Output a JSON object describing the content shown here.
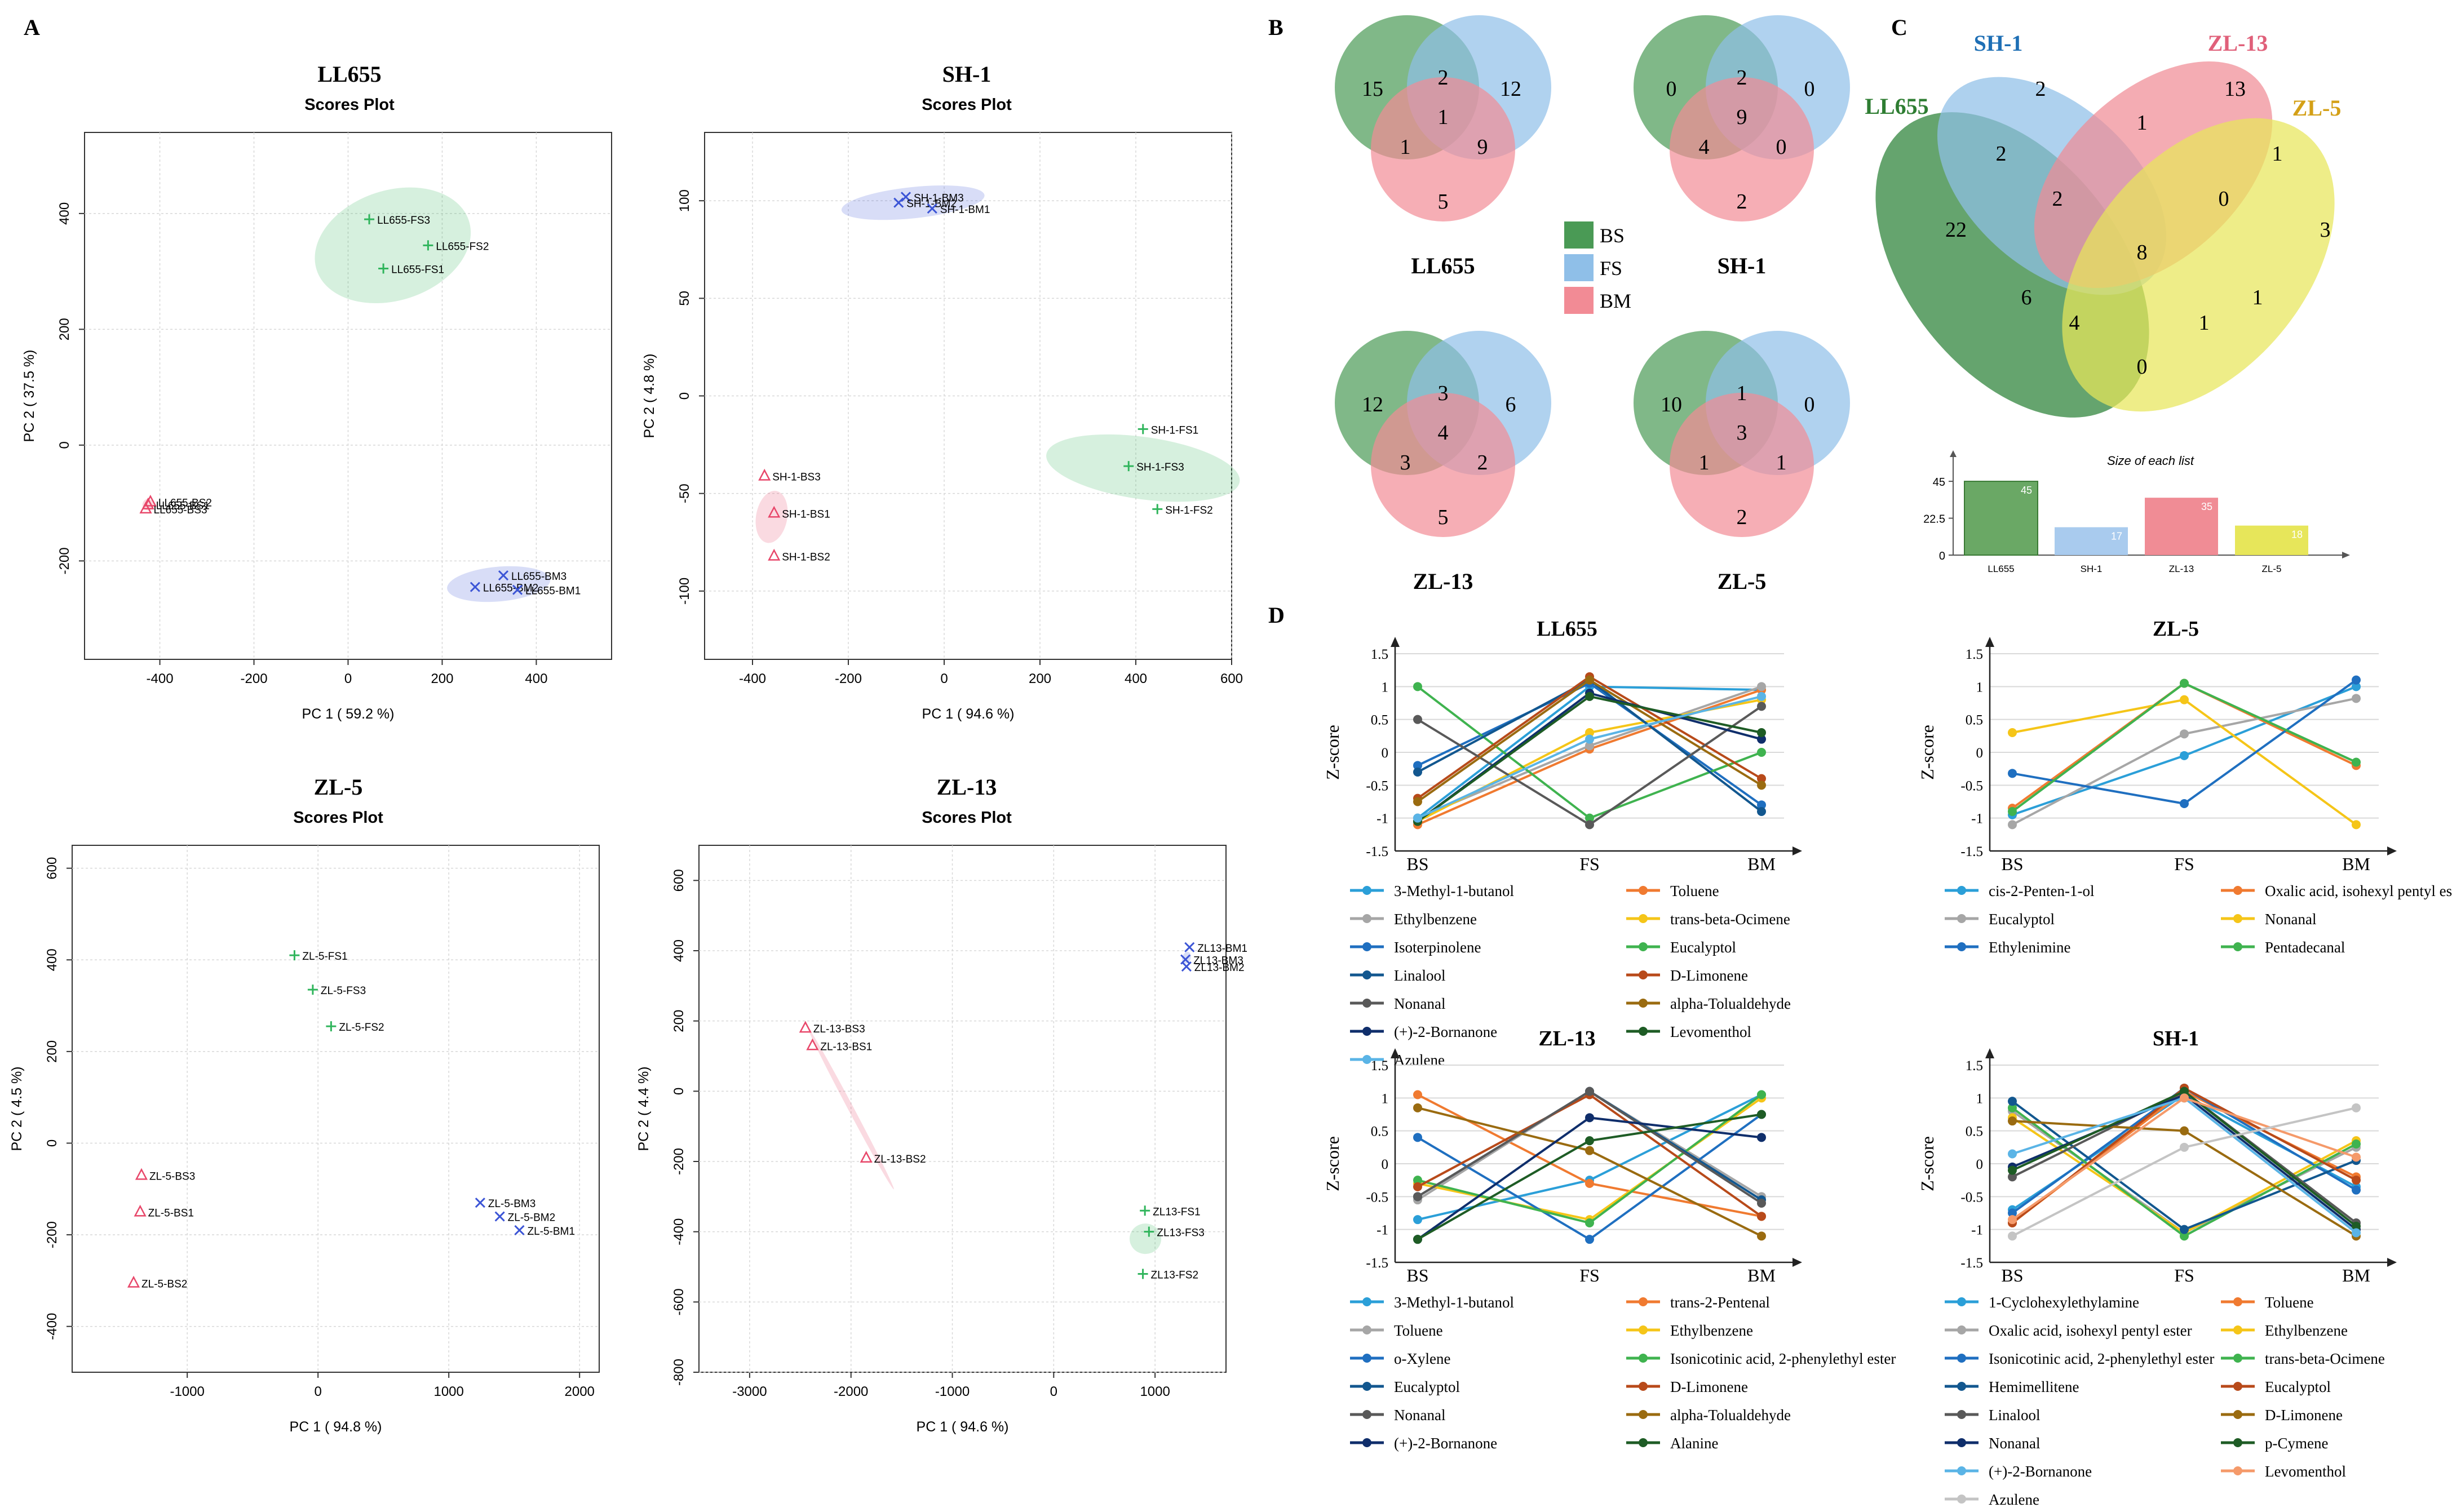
{
  "panels": {
    "A": "A",
    "B": "B",
    "C": "C",
    "D": "D"
  },
  "colors": {
    "bs": "#e8476a",
    "fs": "#30b55c",
    "bm": "#3c55d6",
    "venn_bs": "#4a9a55",
    "venn_fs": "#8fbfe8",
    "venn_bm": "#f28b95"
  },
  "chart_data": [
    {
      "type": "scatter",
      "panel": "A",
      "id": "LL655",
      "title": "LL655",
      "subtitle": "Scores Plot",
      "xlabel": "PC 1 ( 59.2 %)",
      "ylabel": "PC 2 ( 37.5 %)",
      "xlim": [
        -560,
        560
      ],
      "ylim": [
        -370,
        540
      ],
      "xticks": [
        -400,
        -200,
        0,
        200,
        400
      ],
      "yticks": [
        -200,
        0,
        200,
        400
      ],
      "points": [
        {
          "label": "LL655-FS3",
          "g": "FS",
          "x": 45,
          "y": 390
        },
        {
          "label": "LL655-FS2",
          "g": "FS",
          "x": 170,
          "y": 345
        },
        {
          "label": "LL655-FS1",
          "g": "FS",
          "x": 75,
          "y": 305
        },
        {
          "label": "LL655-BS2",
          "g": "BS",
          "x": -420,
          "y": -98
        },
        {
          "label": "LL655-BS1",
          "g": "BS",
          "x": -425,
          "y": -103
        },
        {
          "label": "LL655-BS3",
          "g": "BS",
          "x": -430,
          "y": -110
        },
        {
          "label": "LL655-BM3",
          "g": "BM",
          "x": 330,
          "y": -225
        },
        {
          "label": "LL655-BM2",
          "g": "BM",
          "x": 270,
          "y": -245
        },
        {
          "label": "LL655-BM1",
          "g": "BM",
          "x": 360,
          "y": -250
        }
      ],
      "ellipses": [
        {
          "g": "FS",
          "cx": 95,
          "cy": 345,
          "rx": 170,
          "ry": 95,
          "rot": -18
        },
        {
          "g": "BS",
          "cx": -425,
          "cy": -103,
          "rx": 12,
          "ry": 10,
          "rot": 0
        },
        {
          "g": "BM",
          "cx": 320,
          "cy": -240,
          "rx": 110,
          "ry": 30,
          "rot": -5
        }
      ]
    },
    {
      "type": "scatter",
      "panel": "A",
      "id": "SH-1",
      "title": "SH-1",
      "subtitle": "Scores Plot",
      "xlabel": "PC 1 ( 94.6 %)",
      "ylabel": "PC 2 ( 4.8 %)",
      "xlim": [
        -500,
        600
      ],
      "ylim": [
        -135,
        135
      ],
      "xticks": [
        -400,
        -200,
        0,
        200,
        400,
        600
      ],
      "yticks": [
        -100,
        -50,
        0,
        50,
        100
      ],
      "points": [
        {
          "label": "SH-1-BM3",
          "g": "BM",
          "x": -80,
          "y": 102
        },
        {
          "label": "SH-1-BM2",
          "g": "BM",
          "x": -95,
          "y": 99
        },
        {
          "label": "SH-1-BM1",
          "g": "BM",
          "x": -25,
          "y": 96
        },
        {
          "label": "SH-1-FS1",
          "g": "FS",
          "x": 415,
          "y": -17
        },
        {
          "label": "SH-1-FS3",
          "g": "FS",
          "x": 385,
          "y": -36
        },
        {
          "label": "SH-1-FS2",
          "g": "FS",
          "x": 445,
          "y": -58
        },
        {
          "label": "SH-1-BS3",
          "g": "BS",
          "x": -375,
          "y": -41
        },
        {
          "label": "SH-1-BS1",
          "g": "BS",
          "x": -355,
          "y": -60
        },
        {
          "label": "SH-1-BS2",
          "g": "BS",
          "x": -355,
          "y": -82
        }
      ],
      "ellipses": [
        {
          "g": "BM",
          "cx": -65,
          "cy": 99,
          "rx": 150,
          "ry": 8,
          "rot": -6
        },
        {
          "g": "FS",
          "cx": 415,
          "cy": -37,
          "rx": 65,
          "ry": 50,
          "rot": -82
        },
        {
          "g": "BS",
          "cx": -360,
          "cy": -62,
          "rx": 55,
          "ry": 8,
          "rot": -80
        }
      ]
    },
    {
      "type": "scatter",
      "panel": "A",
      "id": "ZL-5",
      "title": "ZL-5",
      "subtitle": "Scores Plot",
      "xlabel": "PC 1 ( 94.8 %)",
      "ylabel": "PC 2 ( 4.5 %)",
      "xlim": [
        -1880,
        2150
      ],
      "ylim": [
        -500,
        650
      ],
      "xticks": [
        -1000,
        0,
        1000,
        2000
      ],
      "yticks": [
        -400,
        -200,
        0,
        200,
        400,
        600
      ],
      "points": [
        {
          "label": "ZL-5-FS1",
          "g": "FS",
          "x": -180,
          "y": 410
        },
        {
          "label": "ZL-5-FS3",
          "g": "FS",
          "x": -40,
          "y": 335
        },
        {
          "label": "ZL-5-FS2",
          "g": "FS",
          "x": 100,
          "y": 255
        },
        {
          "label": "ZL-5-BS3",
          "g": "BS",
          "x": -1350,
          "y": -70
        },
        {
          "label": "ZL-5-BS1",
          "g": "BS",
          "x": -1360,
          "y": -150
        },
        {
          "label": "ZL-5-BS2",
          "g": "BS",
          "x": -1410,
          "y": -305
        },
        {
          "label": "ZL-5-BM3",
          "g": "BM",
          "x": 1240,
          "y": -130
        },
        {
          "label": "ZL-5-BM2",
          "g": "BM",
          "x": 1390,
          "y": -160
        },
        {
          "label": "ZL-5-BM1",
          "g": "BM",
          "x": 1540,
          "y": -190
        }
      ],
      "ellipses": []
    },
    {
      "type": "scatter",
      "panel": "A",
      "id": "ZL-13",
      "title": "ZL-13",
      "subtitle": "Scores Plot",
      "xlabel": "PC 1 ( 94.6 %)",
      "ylabel": "PC 2 ( 4.4 %)",
      "xlim": [
        -3500,
        1700
      ],
      "ylim": [
        -800,
        700
      ],
      "xticks": [
        -3000,
        -2000,
        -1000,
        0,
        1000
      ],
      "yticks": [
        -800,
        -600,
        -400,
        -200,
        0,
        200,
        400,
        600
      ],
      "points": [
        {
          "label": "ZL13-BM1",
          "g": "BM",
          "x": 1340,
          "y": 410
        },
        {
          "label": "ZL13-BM3",
          "g": "BM",
          "x": 1300,
          "y": 375
        },
        {
          "label": "ZL13-BM2",
          "g": "BM",
          "x": 1310,
          "y": 355
        },
        {
          "label": "ZL-13-BS3",
          "g": "BS",
          "x": -2450,
          "y": 180
        },
        {
          "label": "ZL-13-BS1",
          "g": "BS",
          "x": -2380,
          "y": 130
        },
        {
          "label": "ZL-13-BS2",
          "g": "BS",
          "x": -1850,
          "y": -190
        },
        {
          "label": "ZL13-FS1",
          "g": "FS",
          "x": 900,
          "y": -340
        },
        {
          "label": "ZL13-FS3",
          "g": "FS",
          "x": 940,
          "y": -400
        },
        {
          "label": "ZL13-FS2",
          "g": "FS",
          "x": 880,
          "y": -520
        }
      ],
      "ellipses": [
        {
          "g": "BS",
          "cx": -2000,
          "cy": -50,
          "rx": 900,
          "ry": 8,
          "rot": 62
        },
        {
          "g": "FS",
          "cx": 905,
          "cy": -420,
          "rx": 150,
          "ry": 45,
          "rot": -88
        },
        {
          "g": "BM",
          "cx": 1310,
          "cy": 380,
          "rx": 60,
          "ry": 12,
          "rot": -70
        }
      ]
    },
    {
      "type": "venn",
      "panel": "B",
      "id": "venn-LL655",
      "label": "LL655",
      "regions": {
        "bs": 15,
        "fs": 12,
        "bm": 5,
        "bs_fs": 2,
        "bs_bm": 1,
        "fs_bm": 9,
        "all": 1
      }
    },
    {
      "type": "venn",
      "panel": "B",
      "id": "venn-SH-1",
      "label": "SH-1",
      "regions": {
        "bs": 0,
        "fs": 0,
        "bm": 2,
        "bs_fs": 2,
        "bs_bm": 4,
        "fs_bm": 0,
        "all": 9
      }
    },
    {
      "type": "venn",
      "panel": "B",
      "id": "venn-ZL-13",
      "label": "ZL-13",
      "regions": {
        "bs": 12,
        "fs": 6,
        "bm": 5,
        "bs_fs": 3,
        "bs_bm": 3,
        "fs_bm": 2,
        "all": 4
      }
    },
    {
      "type": "venn",
      "panel": "B",
      "id": "venn-ZL-5",
      "label": "ZL-5",
      "regions": {
        "bs": 10,
        "fs": 0,
        "bm": 2,
        "bs_fs": 1,
        "bs_bm": 1,
        "fs_bm": 1,
        "all": 3
      }
    },
    {
      "type": "venn4",
      "panel": "C",
      "sets": [
        "LL655",
        "SH-1",
        "ZL-13",
        "ZL-5"
      ],
      "counts": [
        2,
        13,
        1,
        2,
        22,
        3,
        1,
        2,
        0,
        8,
        6,
        1,
        4,
        1,
        0
      ]
    },
    {
      "type": "bar",
      "panel": "C",
      "id": "size-bars",
      "title": "Size of each list",
      "categories": [
        "LL655",
        "SH-1",
        "ZL-13",
        "ZL-5"
      ],
      "values": [
        45,
        17,
        35,
        18
      ],
      "yticks": [
        "0",
        "22.5",
        "45"
      ],
      "ylim": [
        0,
        55
      ],
      "colors": [
        "#6aa865",
        "#a9cbee",
        "#f08c95",
        "#e7e65a"
      ]
    },
    {
      "type": "line",
      "panel": "D",
      "id": "D-LL655",
      "title": "LL655",
      "ylabel": "Z-score",
      "categories": [
        "BS",
        "FS",
        "BM"
      ],
      "yticks": [
        -1.5,
        -1,
        -0.5,
        0,
        0.5,
        1,
        1.5
      ],
      "ylim": [
        -1.5,
        1.5
      ],
      "series": [
        {
          "name": "3-Methyl-1-butanol",
          "color": "#2b9fd8",
          "values": [
            -1.0,
            1.0,
            0.95
          ]
        },
        {
          "name": "Toluene",
          "color": "#f07a30",
          "values": [
            -1.1,
            0.05,
            0.95
          ]
        },
        {
          "name": "Ethylbenzene",
          "color": "#a6a6a6",
          "values": [
            -1.0,
            0.1,
            1.0
          ]
        },
        {
          "name": "trans-beta-Ocimene",
          "color": "#f5c518",
          "values": [
            -1.05,
            0.3,
            0.8
          ]
        },
        {
          "name": "Isoterpinolene",
          "color": "#1f6fc0",
          "values": [
            -0.2,
            1.05,
            -0.8
          ]
        },
        {
          "name": "Eucalyptol",
          "color": "#3fb34f",
          "values": [
            1.0,
            -1.0,
            0.0
          ]
        },
        {
          "name": "Linalool",
          "color": "#12578f",
          "values": [
            -0.3,
            1.1,
            -0.9
          ]
        },
        {
          "name": "D-Limonene",
          "color": "#b84a1a",
          "values": [
            -0.7,
            1.15,
            -0.4
          ]
        },
        {
          "name": "Nonanal",
          "color": "#595959",
          "values": [
            0.5,
            -1.1,
            0.7
          ]
        },
        {
          "name": "alpha-Tolualdehyde",
          "color": "#9a6b10",
          "values": [
            -0.75,
            1.1,
            -0.5
          ]
        },
        {
          "name": "(+)-2-Bornanone",
          "color": "#0f2e6b",
          "values": [
            -1.05,
            0.9,
            0.2
          ]
        },
        {
          "name": "Levomenthol",
          "color": "#1e5c25",
          "values": [
            -1.05,
            0.85,
            0.3
          ]
        },
        {
          "name": "Azulene",
          "color": "#5ab4e6",
          "values": [
            -1.0,
            0.2,
            0.85
          ]
        }
      ]
    },
    {
      "type": "line",
      "panel": "D",
      "id": "D-ZL-5",
      "title": "ZL-5",
      "ylabel": "Z-score",
      "categories": [
        "BS",
        "FS",
        "BM"
      ],
      "yticks": [
        -1.5,
        -1,
        -0.5,
        0,
        0.5,
        1,
        1.5
      ],
      "ylim": [
        -1.5,
        1.5
      ],
      "series": [
        {
          "name": "cis-2-Penten-1-ol",
          "color": "#2b9fd8",
          "values": [
            -0.95,
            -0.05,
            1.0
          ]
        },
        {
          "name": "Oxalic acid, isohexyl pentyl ester",
          "color": "#f07a30",
          "values": [
            -0.85,
            1.05,
            -0.2
          ]
        },
        {
          "name": "Eucalyptol",
          "color": "#a6a6a6",
          "values": [
            -1.1,
            0.28,
            0.82
          ]
        },
        {
          "name": "Nonanal",
          "color": "#f5c518",
          "values": [
            0.3,
            0.8,
            -1.1
          ]
        },
        {
          "name": "Ethylenimine",
          "color": "#1f6fc0",
          "values": [
            -0.32,
            -0.78,
            1.1
          ]
        },
        {
          "name": "Pentadecanal",
          "color": "#3fb34f",
          "values": [
            -0.9,
            1.05,
            -0.15
          ]
        }
      ]
    },
    {
      "type": "line",
      "panel": "D",
      "id": "D-ZL-13",
      "title": "ZL-13",
      "ylabel": "Z-score",
      "categories": [
        "BS",
        "FS",
        "BM"
      ],
      "yticks": [
        -1.5,
        -1,
        -0.5,
        0,
        0.5,
        1,
        1.5
      ],
      "ylim": [
        -1.5,
        1.5
      ],
      "series": [
        {
          "name": "3-Methyl-1-butanol",
          "color": "#2b9fd8",
          "values": [
            -0.85,
            -0.25,
            1.05
          ]
        },
        {
          "name": "trans-2-Pentenal",
          "color": "#f07a30",
          "values": [
            1.05,
            -0.3,
            -0.8
          ]
        },
        {
          "name": "Toluene",
          "color": "#a6a6a6",
          "values": [
            -0.55,
            1.1,
            -0.5
          ]
        },
        {
          "name": "Ethylbenzene",
          "color": "#f5c518",
          "values": [
            -0.3,
            -0.85,
            1.0
          ]
        },
        {
          "name": "o-Xylene",
          "color": "#1f6fc0",
          "values": [
            0.4,
            -1.15,
            0.75
          ]
        },
        {
          "name": "Isonicotinic acid, 2-phenylethyl ester",
          "color": "#3fb34f",
          "values": [
            -0.25,
            -0.9,
            1.05
          ]
        },
        {
          "name": "Eucalyptol",
          "color": "#12578f",
          "values": [
            -0.5,
            1.1,
            -0.55
          ]
        },
        {
          "name": "D-Limonene",
          "color": "#b84a1a",
          "values": [
            -0.35,
            1.05,
            -0.8
          ]
        },
        {
          "name": "Nonanal",
          "color": "#595959",
          "values": [
            -0.5,
            1.1,
            -0.6
          ]
        },
        {
          "name": "alpha-Tolualdehyde",
          "color": "#9a6b10",
          "values": [
            0.85,
            0.2,
            -1.1
          ]
        },
        {
          "name": "(+)-2-Bornanone",
          "color": "#0f2e6b",
          "values": [
            -1.15,
            0.7,
            0.4
          ]
        },
        {
          "name": "Alanine",
          "color": "#1e5c25",
          "values": [
            -1.15,
            0.35,
            0.75
          ]
        }
      ]
    },
    {
      "type": "line",
      "panel": "D",
      "id": "D-SH-1",
      "title": "SH-1",
      "ylabel": "Z-score",
      "categories": [
        "BS",
        "FS",
        "BM"
      ],
      "yticks": [
        -1.5,
        -1,
        -0.5,
        0,
        0.5,
        1,
        1.5
      ],
      "ylim": [
        -1.5,
        1.5
      ],
      "series": [
        {
          "name": "1-Cyclohexylethylamine",
          "color": "#2b9fd8",
          "values": [
            -0.7,
            1.05,
            -0.35
          ]
        },
        {
          "name": "Toluene",
          "color": "#f07a30",
          "values": [
            -0.9,
            1.1,
            -0.2
          ]
        },
        {
          "name": "Oxalic acid, isohexyl pentyl ester",
          "color": "#a6a6a6",
          "values": [
            0.8,
            -1.05,
            0.25
          ]
        },
        {
          "name": "Ethylbenzene",
          "color": "#f5c518",
          "values": [
            0.7,
            -1.05,
            0.35
          ]
        },
        {
          "name": "Isonicotinic acid, 2-phenylethyl ester",
          "color": "#1f6fc0",
          "values": [
            -0.75,
            1.15,
            -0.4
          ]
        },
        {
          "name": "trans-beta-Ocimene",
          "color": "#3fb34f",
          "values": [
            0.85,
            -1.1,
            0.3
          ]
        },
        {
          "name": "Hemimellitene",
          "color": "#12578f",
          "values": [
            0.95,
            -1.0,
            0.05
          ]
        },
        {
          "name": "Eucalyptol",
          "color": "#b84a1a",
          "values": [
            -0.9,
            1.15,
            -0.25
          ]
        },
        {
          "name": "Linalool",
          "color": "#595959",
          "values": [
            -0.2,
            1.1,
            -0.9
          ]
        },
        {
          "name": "D-Limonene",
          "color": "#9a6b10",
          "values": [
            0.65,
            0.5,
            -1.1
          ]
        },
        {
          "name": "Nonanal",
          "color": "#0f2e6b",
          "values": [
            -0.05,
            1.05,
            -1.0
          ]
        },
        {
          "name": "p-Cymene",
          "color": "#1e5c25",
          "values": [
            -0.1,
            1.1,
            -0.95
          ]
        },
        {
          "name": "(+)-2-Bornanone",
          "color": "#5ab4e6",
          "values": [
            0.15,
            1.0,
            -1.05
          ]
        },
        {
          "name": "Levomenthol",
          "color": "#f59a6a",
          "values": [
            -0.85,
            1.0,
            0.1
          ]
        },
        {
          "name": "Azulene",
          "color": "#c4c4c4",
          "values": [
            -1.1,
            0.25,
            0.85
          ]
        }
      ]
    }
  ],
  "venn_legend": [
    {
      "key": "BS",
      "color": "#4a9a55"
    },
    {
      "key": "FS",
      "color": "#8fbfe8"
    },
    {
      "key": "BM",
      "color": "#f28b95"
    }
  ],
  "venn4_colors": {
    "LL655": "#2e7d32",
    "SH-1": "#1e6fb5",
    "ZL-13": "#e0607a",
    "ZL-5": "#d4a017"
  }
}
